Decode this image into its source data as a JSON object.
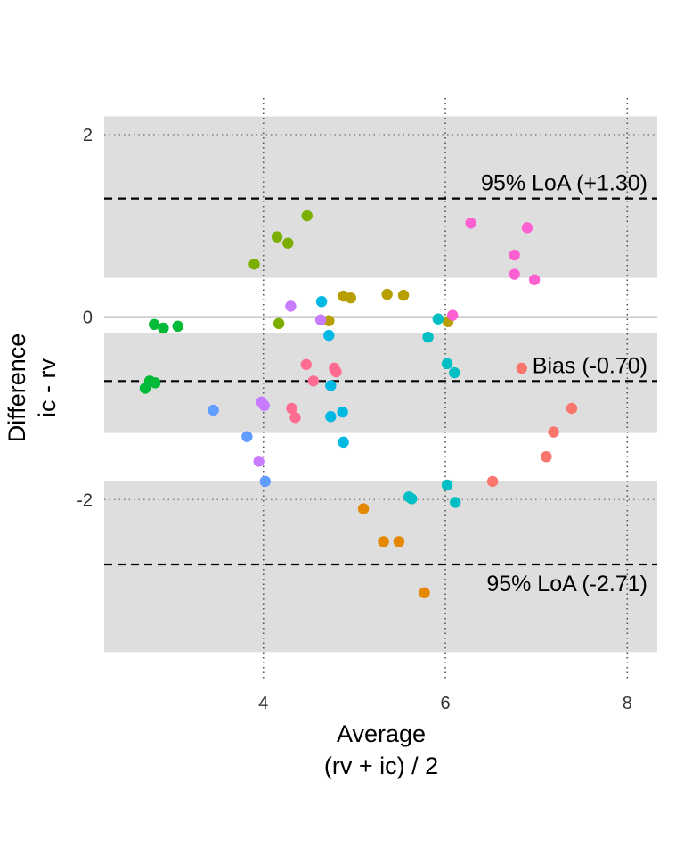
{
  "chart_data": {
    "type": "scatter",
    "title": "",
    "xlabel": [
      "Average",
      "(rv + ic) / 2"
    ],
    "ylabel": [
      "Difference",
      "ic - rv"
    ],
    "xlim": [
      2.25,
      8.33
    ],
    "ylim": [
      -3.97,
      2.4
    ],
    "x_ticks": [
      4,
      6,
      8
    ],
    "y_ticks": [
      -2,
      0,
      2
    ],
    "grid": true,
    "legend": "none",
    "zero_line": 0,
    "bands": [
      [
        0.43,
        2.2
      ],
      [
        -1.27,
        -0.17
      ],
      [
        -3.67,
        -1.8
      ]
    ],
    "lines": [
      {
        "y": 1.3,
        "label": "95% LoA (+1.30)"
      },
      {
        "y": -0.7,
        "label": "Bias (-0.70)"
      },
      {
        "y": -2.71,
        "label": "95% LoA (-2.71)"
      }
    ],
    "series": [
      {
        "color": "#00BA38",
        "points": [
          [
            2.8,
            -0.08
          ],
          [
            2.9,
            -0.12
          ],
          [
            3.06,
            -0.1
          ],
          [
            2.7,
            -0.78
          ],
          [
            2.75,
            -0.7
          ],
          [
            2.81,
            -0.72
          ]
        ]
      },
      {
        "color": "#7CAE00",
        "points": [
          [
            3.9,
            0.58
          ],
          [
            4.15,
            0.88
          ],
          [
            4.27,
            0.81
          ],
          [
            4.48,
            1.11
          ],
          [
            4.17,
            -0.07
          ]
        ]
      },
      {
        "color": "#B79F00",
        "points": [
          [
            4.88,
            0.23
          ],
          [
            4.96,
            0.21
          ],
          [
            5.36,
            0.25
          ],
          [
            5.54,
            0.24
          ],
          [
            4.72,
            -0.04
          ],
          [
            6.03,
            -0.05
          ]
        ]
      },
      {
        "color": "#E58700",
        "points": [
          [
            5.1,
            -2.1
          ],
          [
            5.32,
            -2.46
          ],
          [
            5.49,
            -2.46
          ],
          [
            5.77,
            -3.02
          ]
        ]
      },
      {
        "color": "#F8766D",
        "points": [
          [
            6.52,
            -1.8
          ],
          [
            7.11,
            -1.53
          ],
          [
            7.19,
            -1.26
          ],
          [
            7.39,
            -1.0
          ],
          [
            6.84,
            -0.56
          ]
        ]
      },
      {
        "color": "#FD61D1",
        "points": [
          [
            6.28,
            1.03
          ],
          [
            6.76,
            0.68
          ],
          [
            6.76,
            0.47
          ],
          [
            6.9,
            0.98
          ],
          [
            6.98,
            0.41
          ],
          [
            6.08,
            0.02
          ]
        ]
      },
      {
        "color": "#FF6C91",
        "points": [
          [
            4.47,
            -0.52
          ],
          [
            4.55,
            -0.7
          ],
          [
            4.78,
            -0.56
          ],
          [
            4.8,
            -0.6
          ],
          [
            4.31,
            -1.0
          ],
          [
            4.35,
            -1.1
          ]
        ]
      },
      {
        "color": "#C77CFF",
        "points": [
          [
            4.3,
            0.12
          ],
          [
            4.63,
            -0.03
          ],
          [
            3.98,
            -0.93
          ],
          [
            4.01,
            -0.97
          ],
          [
            3.95,
            -1.58
          ]
        ]
      },
      {
        "color": "#619CFF",
        "points": [
          [
            3.45,
            -1.02
          ],
          [
            3.82,
            -1.31
          ],
          [
            4.02,
            -1.8
          ]
        ]
      },
      {
        "color": "#00B9E3",
        "points": [
          [
            4.64,
            0.17
          ],
          [
            4.72,
            -0.2
          ],
          [
            4.74,
            -0.75
          ],
          [
            4.74,
            -1.09
          ],
          [
            4.87,
            -1.04
          ],
          [
            4.88,
            -1.37
          ]
        ]
      },
      {
        "color": "#00BFC4",
        "points": [
          [
            5.92,
            -0.02
          ],
          [
            5.81,
            -0.22
          ],
          [
            6.02,
            -0.51
          ],
          [
            6.1,
            -0.61
          ],
          [
            6.02,
            -1.84
          ],
          [
            5.6,
            -1.97
          ],
          [
            5.63,
            -1.99
          ],
          [
            6.11,
            -2.03
          ]
        ]
      }
    ]
  }
}
